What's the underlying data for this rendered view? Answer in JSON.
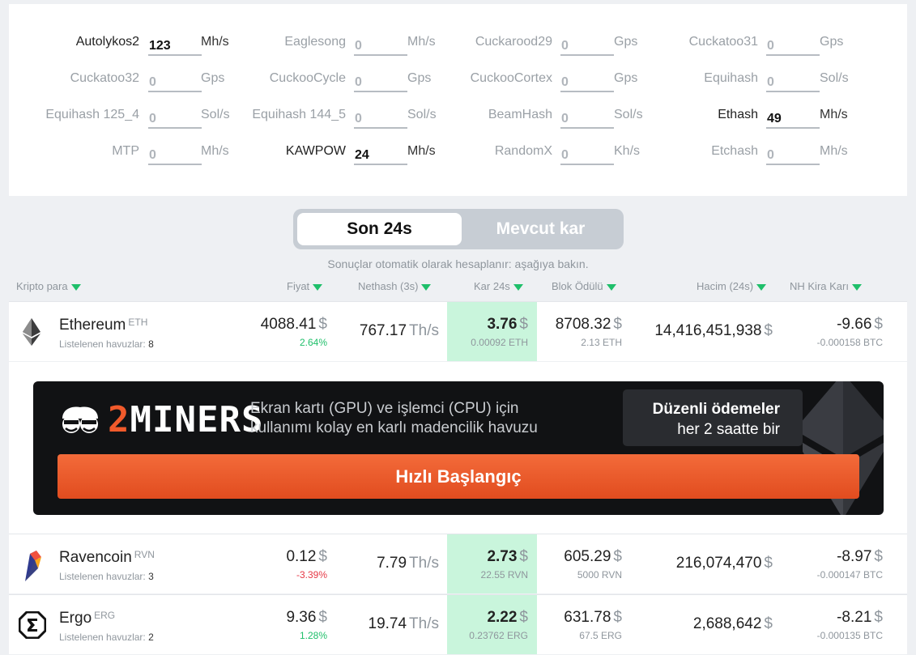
{
  "hashrates": [
    {
      "algo": "Autolykos2",
      "value": "123",
      "unit": "Mh/s",
      "active": true
    },
    {
      "algo": "Eaglesong",
      "value": "0",
      "unit": "Mh/s",
      "active": false
    },
    {
      "algo": "Cuckarood29",
      "value": "0",
      "unit": "Gps",
      "active": false
    },
    {
      "algo": "Cuckatoo31",
      "value": "0",
      "unit": "Gps",
      "active": false
    },
    {
      "algo": "Cuckatoo32",
      "value": "0",
      "unit": "Gps",
      "active": false
    },
    {
      "algo": "CuckooCycle",
      "value": "0",
      "unit": "Gps",
      "active": false
    },
    {
      "algo": "CuckooCortex",
      "value": "0",
      "unit": "Gps",
      "active": false
    },
    {
      "algo": "Equihash",
      "value": "0",
      "unit": "Sol/s",
      "active": false
    },
    {
      "algo": "Equihash 125_4",
      "value": "0",
      "unit": "Sol/s",
      "active": false
    },
    {
      "algo": "Equihash 144_5",
      "value": "0",
      "unit": "Sol/s",
      "active": false
    },
    {
      "algo": "BeamHash",
      "value": "0",
      "unit": "Sol/s",
      "active": false
    },
    {
      "algo": "Ethash",
      "value": "49",
      "unit": "Mh/s",
      "active": true
    },
    {
      "algo": "MTP",
      "value": "0",
      "unit": "Mh/s",
      "active": false
    },
    {
      "algo": "KAWPOW",
      "value": "24",
      "unit": "Mh/s",
      "active": true
    },
    {
      "algo": "RandomX",
      "value": "0",
      "unit": "Kh/s",
      "active": false
    },
    {
      "algo": "Etchash",
      "value": "0",
      "unit": "Mh/s",
      "active": false
    }
  ],
  "toggle": {
    "active": "Son 24s",
    "inactive": "Mevcut kar"
  },
  "auto_note": "Sonuçlar otomatik olarak hesaplanır: aşağıya bakın.",
  "columns": {
    "coin": "Kripto para",
    "price": "Fiyat",
    "nethash": "Nethash (3s)",
    "profit": "Kar 24s",
    "reward": "Blok Ödülü",
    "volume": "Hacim (24s)",
    "nh": "NH Kira Karı"
  },
  "coins": [
    {
      "name": "Ethereum",
      "ticker": "ETH",
      "pools_label": "Listelenen havuzlar:",
      "pools": "8",
      "price": "4088.41",
      "price_cur": "$",
      "change": "2.64%",
      "change_dir": "up",
      "nethash": "767.17",
      "nethash_unit": "Th/s",
      "profit": "3.76",
      "profit_cur": "$",
      "profit_sub": "0.00092 ETH",
      "reward": "8708.32",
      "reward_cur": "$",
      "reward_sub": "2.13 ETH",
      "volume": "14,416,451,938",
      "volume_cur": "$",
      "nh": "-9.66",
      "nh_cur": "$",
      "nh_sub": "-0.000158 BTC"
    },
    {
      "name": "Ravencoin",
      "ticker": "RVN",
      "pools_label": "Listelenen havuzlar:",
      "pools": "3",
      "price": "0.12",
      "price_cur": "$",
      "change": "-3.39%",
      "change_dir": "down",
      "nethash": "7.79",
      "nethash_unit": "Th/s",
      "profit": "2.73",
      "profit_cur": "$",
      "profit_sub": "22.55 RVN",
      "reward": "605.29",
      "reward_cur": "$",
      "reward_sub": "5000 RVN",
      "volume": "216,074,470",
      "volume_cur": "$",
      "nh": "-8.97",
      "nh_cur": "$",
      "nh_sub": "-0.000147 BTC"
    },
    {
      "name": "Ergo",
      "ticker": "ERG",
      "pools_label": "Listelenen havuzlar:",
      "pools": "2",
      "price": "9.36",
      "price_cur": "$",
      "change": "1.28%",
      "change_dir": "up",
      "nethash": "19.74",
      "nethash_unit": "Th/s",
      "profit": "2.22",
      "profit_cur": "$",
      "profit_sub": "0.23762 ERG",
      "reward": "631.78",
      "reward_cur": "$",
      "reward_sub": "67.5 ERG",
      "volume": "2,688,642",
      "volume_cur": "$",
      "nh": "-8.21",
      "nh_cur": "$",
      "nh_sub": "-0.000135 BTC"
    }
  ],
  "ad": {
    "brand_digit": "2",
    "brand_word": "MINERS",
    "tagline_1": "Ekran kartı (GPU) ve işlemci (CPU) için",
    "tagline_2": "kullanımı kolay en karlı madencilik havuzu",
    "payout_1": "Düzenli ödemeler",
    "payout_2": "her 2 saatte bir",
    "cta": "Hızlı Başlangıç"
  },
  "colors": {
    "accent_green": "#1fbf6a",
    "profit_bg": "#c9f5dc",
    "cta_orange": "#e9562a",
    "negative": "#e63946"
  }
}
